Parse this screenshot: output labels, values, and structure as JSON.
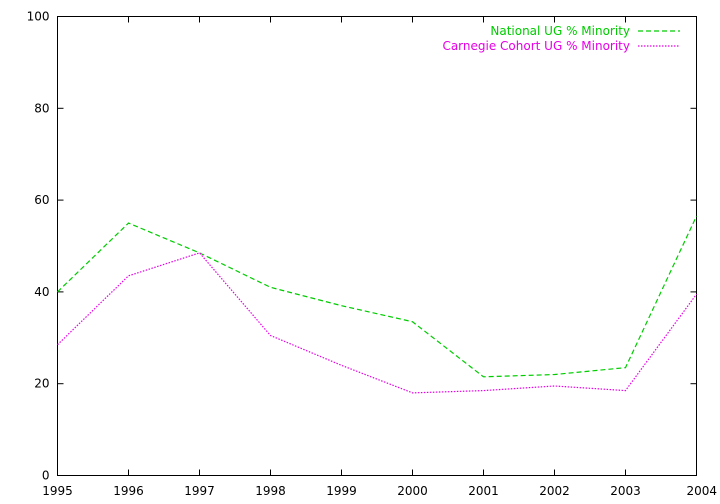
{
  "chart_data": {
    "type": "line",
    "title": "",
    "xlabel": "",
    "ylabel": "",
    "x": [
      1995,
      1996,
      1997,
      1998,
      1999,
      2000,
      2001,
      2002,
      2003,
      2004
    ],
    "xlim": [
      1995,
      2004
    ],
    "ylim": [
      0,
      100
    ],
    "xticks": [
      "1995",
      "1996",
      "1997",
      "1998",
      "1999",
      "2000",
      "2001",
      "2002",
      "2003",
      "2004"
    ],
    "yticks": [
      "0",
      "20",
      "40",
      "60",
      "80",
      "100"
    ],
    "grid": false,
    "legend_position": "top-right",
    "series": [
      {
        "name": "National UG % Minority",
        "color": "#00cc00",
        "dash": "dashed",
        "values": [
          40.0,
          55.0,
          48.5,
          41.0,
          37.0,
          33.5,
          21.5,
          22.0,
          23.5,
          56.5
        ]
      },
      {
        "name": "Carnegie Cohort UG % Minority",
        "color": "#e600e6",
        "dash": "dotted",
        "values": [
          28.5,
          43.5,
          48.5,
          30.5,
          24.0,
          18.0,
          18.5,
          19.5,
          18.5,
          39.5
        ]
      }
    ]
  }
}
